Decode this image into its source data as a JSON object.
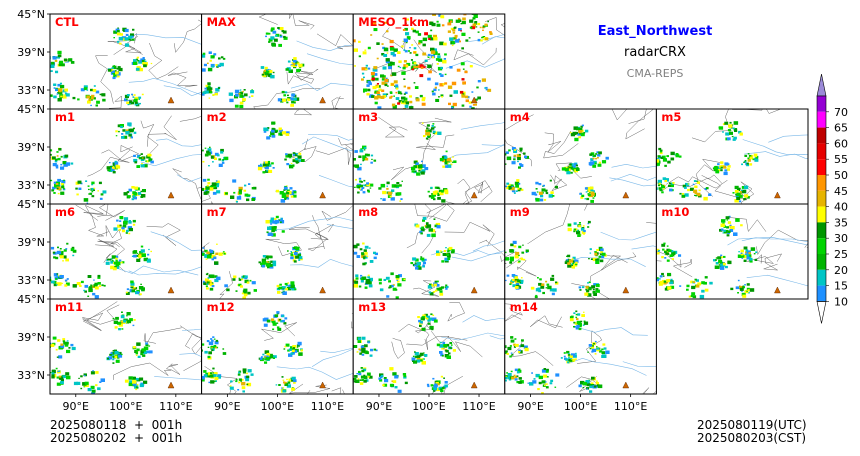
{
  "header": {
    "region": "East_Northwest",
    "product": "radarCRX",
    "system": "CMA-REPS"
  },
  "panels": [
    "CTL",
    "MAX",
    "MESO_1km",
    "m1",
    "m2",
    "m3",
    "m4",
    "m5",
    "m6",
    "m7",
    "m8",
    "m9",
    "m10",
    "m11",
    "m12",
    "m13",
    "m14"
  ],
  "lat_ticks": [
    "45°N",
    "39°N",
    "33°N"
  ],
  "lon_ticks": [
    "90°E",
    "100°E",
    "110°E"
  ],
  "colorbar": {
    "levels": [
      "10",
      "15",
      "20",
      "25",
      "30",
      "35",
      "40",
      "45",
      "50",
      "55",
      "60",
      "65",
      "70"
    ],
    "colors": [
      "#1e90ff",
      "#00c5c5",
      "#00b400",
      "#00d400",
      "#009600",
      "#ffff00",
      "#e6b400",
      "#ff9600",
      "#ff0000",
      "#e60000",
      "#be0000",
      "#ff00ff",
      "#9400d3"
    ],
    "extend_top_color": "#9b8ad8",
    "extend_bottom_color": "#ffffff"
  },
  "footer": {
    "init_utc": "2025080118  +  001h",
    "init_cst": "2025080202  +  001h",
    "valid_utc": "2025080119(UTC)",
    "valid_cst": "2025080203(CST)"
  },
  "colors": {
    "title": "#0000ff",
    "panel_label": "#ff0000",
    "subtitle_gray": "#808080"
  }
}
